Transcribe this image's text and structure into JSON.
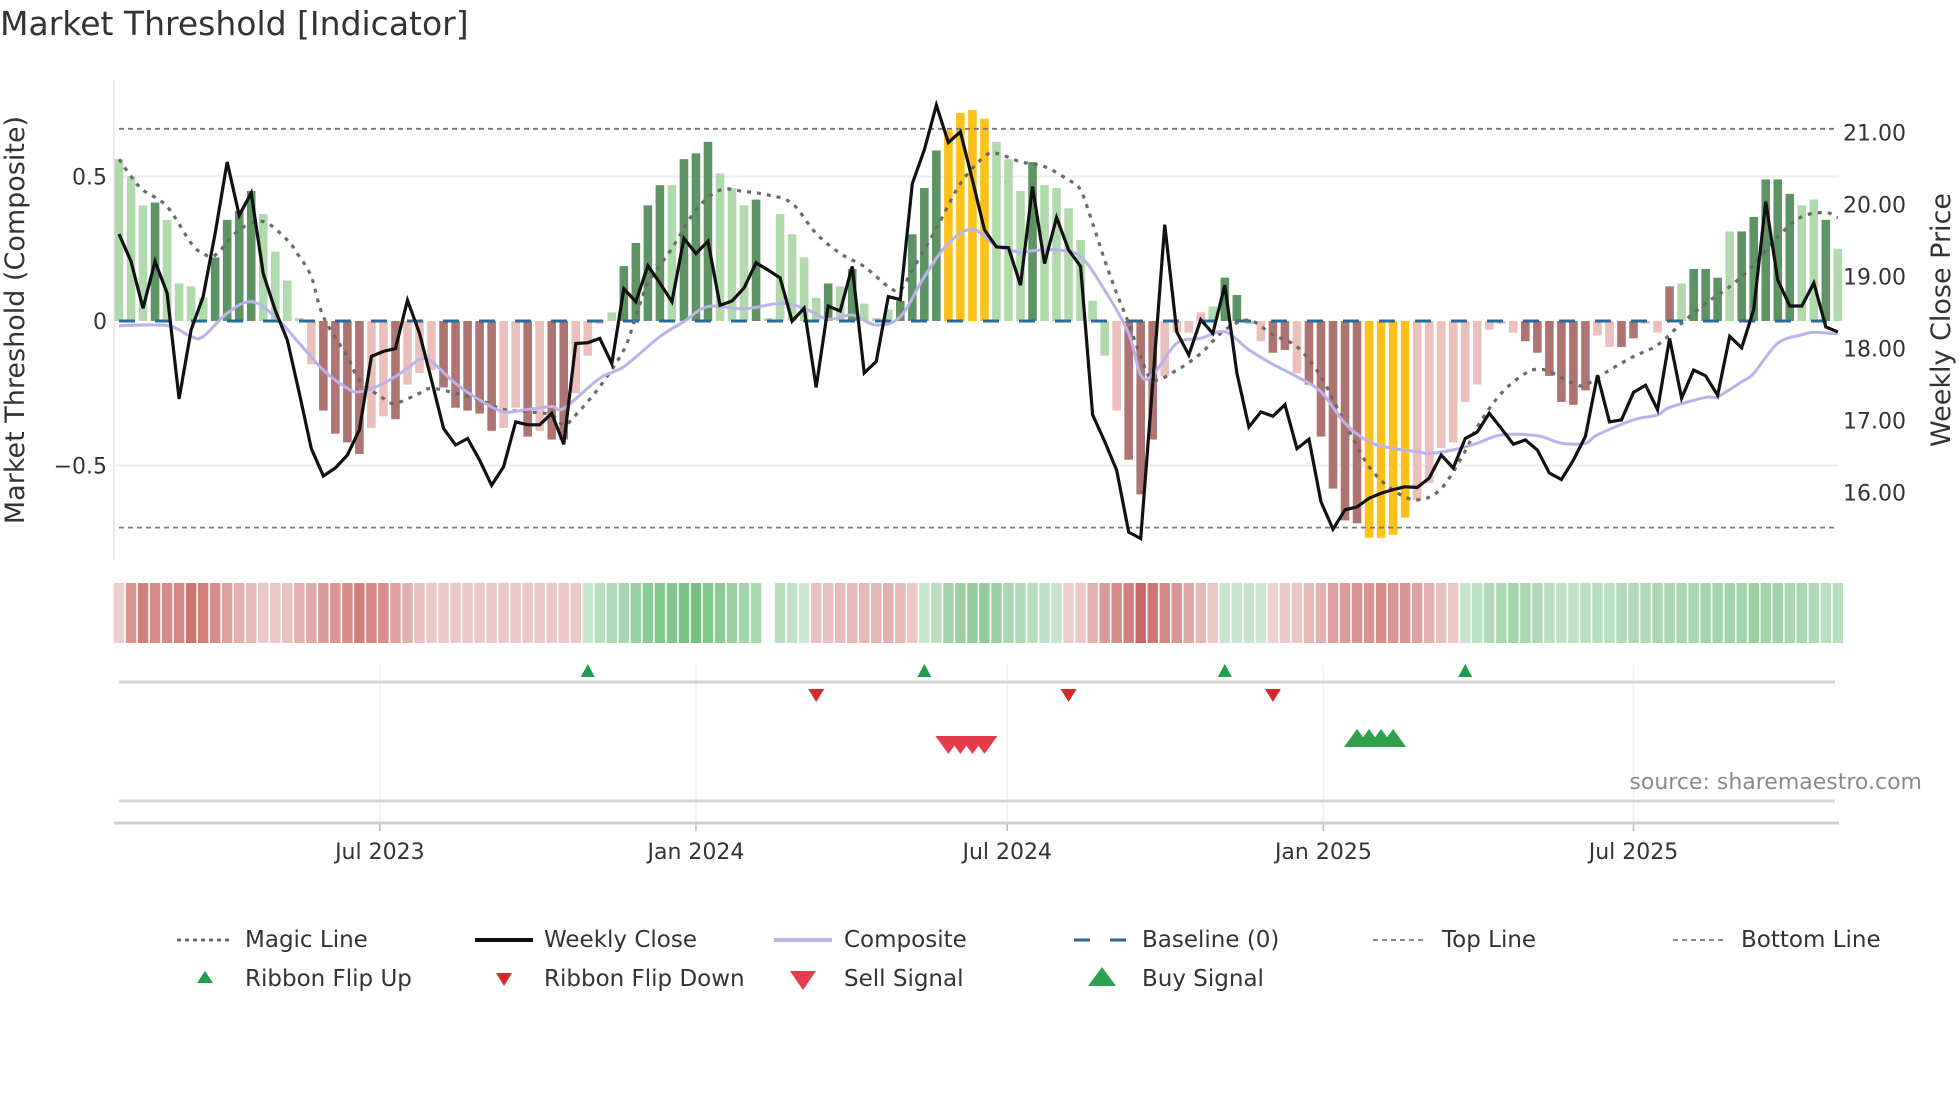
{
  "title": "Market Threshold [Indicator]",
  "source": "source: sharemaestro.com",
  "colors": {
    "bar_dark_green": "#5e9463",
    "bar_light_green": "#b0d9ac",
    "bar_yellow": "#fcc21b",
    "bar_dark_red": "#ad7472",
    "bar_light_red": "#eabfbc",
    "baseline": "#2b6a96",
    "magic_line": "#6a6a6a",
    "weekly_close": "#111111",
    "composite": "#bab2ea",
    "ribbon_flip_up": "#1d9e4c",
    "ribbon_flip_down": "#d62a2a",
    "sell_signal": "#e63b4a",
    "buy_signal": "#2e9f4a"
  },
  "chart_data": {
    "type": "bar+line",
    "title": "Market Threshold [Indicator]",
    "ylabel_left": "Market Threshold (Composite)",
    "ylabel_right": "Weekly Close Price",
    "y_left_ticks": [
      {
        "label": "0.5",
        "value": 0.5
      },
      {
        "label": "0",
        "value": 0
      },
      {
        "label": "−0.5",
        "value": -0.5
      }
    ],
    "y_right_ticks": [
      {
        "label": "21.00",
        "value": 21
      },
      {
        "label": "20.00",
        "value": 20
      },
      {
        "label": "19.00",
        "value": 19
      },
      {
        "label": "18.00",
        "value": 18
      },
      {
        "label": "17.00",
        "value": 17
      },
      {
        "label": "16.00",
        "value": 16
      }
    ],
    "x_ticks": [
      {
        "label": "Jul 2023",
        "week": 21.7
      },
      {
        "label": "Jan 2024",
        "week": 48.0
      },
      {
        "label": "Jul 2024",
        "week": 73.9
      },
      {
        "label": "Jan 2025",
        "week": 100.2
      },
      {
        "label": "Jul 2025",
        "week": 126.0
      }
    ],
    "top_line": 0.665,
    "bottom_line": -0.715,
    "baseline": 0,
    "weeks": 144,
    "composite_bars": [
      0.56,
      0.5,
      0.4,
      0.41,
      0.35,
      0.13,
      0.12,
      0.08,
      0.22,
      0.35,
      0.38,
      0.45,
      0.37,
      0.24,
      0.14,
      0.01,
      -0.15,
      -0.31,
      -0.39,
      -0.42,
      -0.46,
      -0.37,
      -0.33,
      -0.34,
      -0.22,
      -0.18,
      -0.17,
      -0.23,
      -0.3,
      -0.31,
      -0.32,
      -0.38,
      -0.37,
      -0.3,
      -0.4,
      -0.38,
      -0.41,
      -0.41,
      -0.25,
      -0.12,
      -0.01,
      0.03,
      0.19,
      0.27,
      0.4,
      0.47,
      0.47,
      0.56,
      0.58,
      0.62,
      0.51,
      0.46,
      0.4,
      0.42,
      0.01,
      0.37,
      0.3,
      0.22,
      0.08,
      0.13,
      0.12,
      0.18,
      0.06,
      0.01,
      0.04,
      0.07,
      0.3,
      0.46,
      0.59,
      0.66,
      0.72,
      0.73,
      0.7,
      0.62,
      0.56,
      0.45,
      0.55,
      0.47,
      0.46,
      0.39,
      0.28,
      0.07,
      -0.12,
      -0.31,
      -0.48,
      -0.6,
      -0.41,
      -0.19,
      -0.04,
      -0.04,
      0.03,
      0.05,
      0.15,
      0.09,
      -0.01,
      -0.07,
      -0.11,
      -0.1,
      -0.18,
      -0.22,
      -0.4,
      -0.58,
      -0.69,
      -0.7,
      -0.75,
      -0.75,
      -0.74,
      -0.68,
      -0.62,
      -0.56,
      -0.44,
      -0.42,
      -0.28,
      -0.22,
      -0.03,
      -0.01,
      -0.04,
      -0.07,
      -0.11,
      -0.19,
      -0.28,
      -0.29,
      -0.24,
      -0.05,
      -0.09,
      -0.09,
      -0.06,
      -0.01,
      -0.04,
      0.12,
      0.13,
      0.18,
      0.18,
      0.15,
      0.31,
      0.31,
      0.36,
      0.49,
      0.49,
      0.44,
      0.4,
      0.42,
      0.35,
      0.25
    ],
    "bar_states_legend": {
      "g": "bullish-weak",
      "G": "bullish-strong",
      "Y": "extreme",
      "r": "bearish-weak",
      "R": "bearish-strong"
    },
    "bar_states": "gggGggggGGGGggggrRRRRrrRrrrRRRRRrrRrRRrrrgGGGGgGGGgggGgggggGgGgggGGGGYYYYgggGggggggrRRRrrrrgGGgrRRrRRRRRYYYYrrrrrrrrrRRRRRRrrRRrrRgGGGgGGGGGggGgg",
    "weekly_close": [
      19.59,
      19.21,
      18.56,
      19.21,
      18.77,
      17.3,
      18.26,
      18.72,
      19.6,
      20.59,
      19.85,
      20.16,
      19.04,
      18.53,
      18.12,
      17.38,
      16.61,
      16.23,
      16.34,
      16.52,
      16.87,
      17.89,
      17.96,
      18.0,
      18.67,
      18.21,
      17.56,
      16.89,
      16.66,
      16.75,
      16.45,
      16.1,
      16.36,
      16.98,
      16.94,
      16.94,
      17.1,
      16.67,
      18.07,
      18.08,
      18.14,
      17.79,
      18.83,
      18.65,
      19.15,
      18.91,
      18.65,
      19.53,
      19.32,
      19.49,
      18.6,
      18.66,
      18.84,
      19.19,
      19.09,
      18.98,
      18.38,
      18.56,
      17.46,
      18.59,
      18.52,
      19.14,
      17.66,
      17.82,
      18.72,
      18.68,
      20.29,
      20.76,
      21.38,
      20.86,
      21.01,
      20.34,
      19.65,
      19.41,
      19.4,
      18.88,
      20.25,
      19.18,
      19.82,
      19.37,
      19.14,
      17.08,
      16.71,
      16.31,
      15.45,
      15.36,
      17.52,
      19.72,
      18.23,
      17.91,
      18.4,
      18.21,
      18.88,
      17.66,
      16.91,
      17.12,
      17.06,
      17.22,
      16.61,
      16.74,
      15.87,
      15.49,
      15.76,
      15.8,
      15.92,
      15.99,
      16.04,
      16.08,
      16.07,
      16.2,
      16.52,
      16.34,
      16.75,
      16.84,
      17.1,
      16.89,
      16.67,
      16.73,
      16.59,
      16.27,
      16.18,
      16.45,
      16.78,
      17.63,
      16.98,
      17.01,
      17.39,
      17.49,
      17.15,
      18.14,
      17.31,
      17.7,
      17.62,
      17.35,
      18.17,
      18.01,
      18.54,
      20.04,
      18.95,
      18.59,
      18.59,
      18.91,
      18.3,
      18.23
    ],
    "composite_line": [
      [
        0,
        -0.016
      ],
      [
        4,
        -0.016
      ],
      [
        6,
        -0.054
      ],
      [
        7,
        -0.054
      ],
      [
        9,
        0.027
      ],
      [
        11,
        0.067
      ],
      [
        13,
        0.015
      ],
      [
        15,
        -0.077
      ],
      [
        17,
        -0.17
      ],
      [
        19,
        -0.233
      ],
      [
        20,
        -0.245
      ],
      [
        22,
        -0.216
      ],
      [
        24,
        -0.164
      ],
      [
        25,
        -0.133
      ],
      [
        26,
        -0.141
      ],
      [
        28,
        -0.216
      ],
      [
        30,
        -0.273
      ],
      [
        32,
        -0.314
      ],
      [
        34,
        -0.306
      ],
      [
        36,
        -0.296
      ],
      [
        37,
        -0.302
      ],
      [
        40,
        -0.198
      ],
      [
        42,
        -0.158
      ],
      [
        45,
        -0.054
      ],
      [
        47,
        -0.002
      ],
      [
        49,
        0.05
      ],
      [
        52,
        0.042
      ],
      [
        55,
        0.061
      ],
      [
        57,
        0.044
      ],
      [
        59,
        0.006
      ],
      [
        61,
        0.021
      ],
      [
        63,
        -0.014
      ],
      [
        65,
        0.015
      ],
      [
        67,
        0.153
      ],
      [
        69,
        0.269
      ],
      [
        71,
        0.317
      ],
      [
        73,
        0.26
      ],
      [
        75,
        0.238
      ],
      [
        76,
        0.243
      ],
      [
        78,
        0.246
      ],
      [
        80,
        0.223
      ],
      [
        82,
        0.107
      ],
      [
        84,
        -0.043
      ],
      [
        85,
        -0.187
      ],
      [
        86,
        -0.187
      ],
      [
        88,
        -0.077
      ],
      [
        90,
        -0.06
      ],
      [
        92,
        -0.037
      ],
      [
        94,
        -0.1
      ],
      [
        96,
        -0.15
      ],
      [
        98,
        -0.193
      ],
      [
        100,
        -0.245
      ],
      [
        102,
        -0.354
      ],
      [
        104,
        -0.418
      ],
      [
        106,
        -0.441
      ],
      [
        108,
        -0.452
      ],
      [
        109,
        -0.458
      ],
      [
        111,
        -0.446
      ],
      [
        113,
        -0.423
      ],
      [
        115,
        -0.394
      ],
      [
        118,
        -0.397
      ],
      [
        120,
        -0.423
      ],
      [
        122,
        -0.423
      ],
      [
        123,
        -0.394
      ],
      [
        126,
        -0.342
      ],
      [
        128,
        -0.325
      ],
      [
        129,
        -0.299
      ],
      [
        132,
        -0.264
      ],
      [
        133,
        -0.262
      ],
      [
        135,
        -0.21
      ],
      [
        136,
        -0.181
      ],
      [
        138,
        -0.077
      ],
      [
        140,
        -0.048
      ],
      [
        141,
        -0.039
      ],
      [
        143,
        -0.045
      ]
    ],
    "magic_line": [
      [
        0,
        0.56
      ],
      [
        1,
        0.5
      ],
      [
        2,
        0.453
      ],
      [
        4,
        0.396
      ],
      [
        6,
        0.269
      ],
      [
        7,
        0.234
      ],
      [
        8,
        0.228
      ],
      [
        10,
        0.315
      ],
      [
        12,
        0.344
      ],
      [
        14,
        0.28
      ],
      [
        15,
        0.223
      ],
      [
        16,
        0.153
      ],
      [
        17,
        0.015
      ],
      [
        19,
        -0.123
      ],
      [
        20,
        -0.204
      ],
      [
        22,
        -0.268
      ],
      [
        23,
        -0.285
      ],
      [
        25,
        -0.25
      ],
      [
        26,
        -0.233
      ],
      [
        28,
        -0.25
      ],
      [
        30,
        -0.273
      ],
      [
        32,
        -0.306
      ],
      [
        34,
        -0.314
      ],
      [
        36,
        -0.325
      ],
      [
        37,
        -0.36
      ],
      [
        38,
        -0.325
      ],
      [
        40,
        -0.227
      ],
      [
        42,
        -0.1
      ],
      [
        43,
        0.015
      ],
      [
        44,
        0.13
      ],
      [
        46,
        0.251
      ],
      [
        48,
        0.384
      ],
      [
        50,
        0.453
      ],
      [
        52,
        0.448
      ],
      [
        54,
        0.436
      ],
      [
        56,
        0.407
      ],
      [
        58,
        0.303
      ],
      [
        60,
        0.234
      ],
      [
        62,
        0.188
      ],
      [
        64,
        0.119
      ],
      [
        65,
        0.107
      ],
      [
        66,
        0.176
      ],
      [
        68,
        0.32
      ],
      [
        70,
        0.476
      ],
      [
        72,
        0.569
      ],
      [
        73,
        0.58
      ],
      [
        75,
        0.551
      ],
      [
        77,
        0.534
      ],
      [
        79,
        0.488
      ],
      [
        80,
        0.453
      ],
      [
        81,
        0.338
      ],
      [
        82,
        0.211
      ],
      [
        83,
        0.096
      ],
      [
        84,
        -0.008
      ],
      [
        85,
        -0.123
      ],
      [
        86,
        -0.204
      ],
      [
        88,
        -0.17
      ],
      [
        90,
        -0.112
      ],
      [
        92,
        -0.031
      ],
      [
        94,
        0.003
      ],
      [
        96,
        -0.048
      ],
      [
        98,
        -0.089
      ],
      [
        100,
        -0.193
      ],
      [
        102,
        -0.354
      ],
      [
        104,
        -0.504
      ],
      [
        106,
        -0.585
      ],
      [
        108,
        -0.619
      ],
      [
        110,
        -0.58
      ],
      [
        112,
        -0.45
      ],
      [
        113,
        -0.366
      ],
      [
        115,
        -0.25
      ],
      [
        117,
        -0.181
      ],
      [
        118,
        -0.167
      ],
      [
        119,
        -0.175
      ],
      [
        121,
        -0.216
      ],
      [
        122,
        -0.221
      ],
      [
        124,
        -0.17
      ],
      [
        126,
        -0.123
      ],
      [
        128,
        -0.083
      ],
      [
        130,
        -0.008
      ],
      [
        132,
        0.061
      ],
      [
        134,
        0.119
      ],
      [
        136,
        0.194
      ],
      [
        138,
        0.292
      ],
      [
        140,
        0.361
      ],
      [
        142,
        0.375
      ],
      [
        143,
        0.358
      ]
    ],
    "ribbon": [
      -0.15,
      -0.55,
      -0.7,
      -0.6,
      -0.6,
      -0.65,
      -0.8,
      -0.7,
      -0.6,
      -0.45,
      -0.35,
      -0.3,
      -0.2,
      -0.2,
      -0.25,
      -0.35,
      -0.4,
      -0.5,
      -0.55,
      -0.6,
      -0.7,
      -0.65,
      -0.6,
      -0.45,
      -0.35,
      -0.25,
      -0.2,
      -0.2,
      -0.2,
      -0.2,
      -0.2,
      -0.2,
      -0.2,
      -0.2,
      -0.2,
      -0.2,
      -0.2,
      -0.2,
      -0.2,
      0.2,
      0.3,
      0.35,
      0.4,
      0.5,
      0.6,
      0.65,
      0.65,
      0.7,
      0.75,
      0.65,
      0.6,
      0.5,
      0.45,
      0.4,
      null,
      0.3,
      0.25,
      0.15,
      -0.25,
      -0.25,
      -0.28,
      -0.3,
      -0.3,
      -0.32,
      -0.35,
      -0.3,
      -0.2,
      0.2,
      0.3,
      0.45,
      0.5,
      0.55,
      0.55,
      0.5,
      0.4,
      0.35,
      0.3,
      0.25,
      0.2,
      -0.15,
      -0.2,
      -0.35,
      -0.5,
      -0.6,
      -0.7,
      -0.85,
      -0.75,
      -0.65,
      -0.55,
      -0.4,
      -0.3,
      -0.2,
      0.2,
      0.2,
      0.2,
      0.15,
      -0.12,
      -0.18,
      -0.2,
      -0.3,
      -0.35,
      -0.45,
      -0.5,
      -0.55,
      -0.55,
      -0.6,
      -0.55,
      -0.55,
      -0.45,
      -0.35,
      -0.25,
      -0.2,
      0.2,
      0.25,
      0.35,
      0.4,
      0.45,
      0.4,
      0.35,
      0.3,
      0.25,
      0.25,
      0.3,
      0.3,
      0.3,
      0.35,
      0.35,
      0.35,
      0.4,
      0.4,
      0.4,
      0.4,
      0.45,
      0.45,
      0.45,
      0.45,
      0.5,
      0.45,
      0.45,
      0.4,
      0.4,
      0.35,
      0.3,
      0.3
    ],
    "ribbon_flip_up_weeks": [
      39,
      67,
      92,
      112
    ],
    "ribbon_flip_down_weeks": [
      58,
      79,
      96
    ],
    "sell_signal_weeks": [
      69,
      70,
      71,
      72
    ],
    "buy_signal_weeks": [
      103,
      104,
      105,
      106
    ]
  },
  "legend": {
    "magic_line": "Magic Line",
    "weekly_close": "Weekly Close",
    "composite": "Composite",
    "baseline": "Baseline (0)",
    "top_line": "Top Line",
    "bottom_line": "Bottom Line",
    "ribbon_flip_up": "Ribbon Flip Up",
    "ribbon_flip_down": "Ribbon Flip Down",
    "sell_signal": "Sell Signal",
    "buy_signal": "Buy Signal"
  }
}
